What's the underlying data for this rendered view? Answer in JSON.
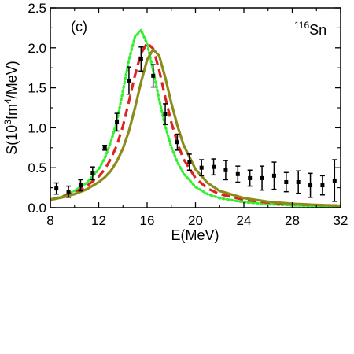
{
  "chart_data": {
    "type": "line",
    "panel_label": "(c)",
    "nucleus": {
      "mass": "116",
      "symbol": "Sn"
    },
    "xlabel": "E(MeV)",
    "ylabel": {
      "base": "S(10",
      "exp1": "3",
      "mid": "fm",
      "exp2": "4",
      "tail": "/MeV)"
    },
    "xlim": [
      8,
      32
    ],
    "ylim": [
      0,
      2.5
    ],
    "x_ticks": [
      8,
      12,
      16,
      20,
      24,
      28,
      32
    ],
    "y_ticks": [
      0.0,
      0.5,
      1.0,
      1.5,
      2.0,
      2.5
    ],
    "x_tick_labels": [
      "8",
      "12",
      "16",
      "20",
      "24",
      "28",
      "32"
    ],
    "y_tick_labels": [
      "0.0",
      "0.5",
      "1.0",
      "1.5",
      "2.0",
      "2.5"
    ],
    "grid": false,
    "series": [
      {
        "style": "dotted",
        "color": "#33ee33",
        "x": [
          8,
          9,
          10,
          11,
          12,
          12.5,
          13,
          13.5,
          14,
          14.5,
          15,
          15.5,
          16,
          16.5,
          17,
          17.5,
          18,
          18.5,
          19,
          20,
          21,
          22,
          24,
          26,
          28,
          30,
          32
        ],
        "y": [
          0.09,
          0.14,
          0.21,
          0.31,
          0.48,
          0.62,
          0.82,
          1.08,
          1.46,
          1.85,
          2.14,
          2.22,
          2.05,
          1.72,
          1.35,
          1.02,
          0.76,
          0.57,
          0.43,
          0.26,
          0.17,
          0.12,
          0.07,
          0.045,
          0.03,
          0.02,
          0.015
        ]
      },
      {
        "style": "dashed",
        "color": "#dd2222",
        "x": [
          8,
          9,
          10,
          11,
          12,
          12.5,
          13,
          13.5,
          14,
          14.5,
          15,
          15.5,
          16,
          16.5,
          17,
          17.5,
          18,
          18.5,
          19,
          20,
          21,
          22,
          24,
          26,
          28,
          30,
          32
        ],
        "y": [
          0.1,
          0.14,
          0.19,
          0.27,
          0.39,
          0.48,
          0.61,
          0.78,
          1.02,
          1.33,
          1.66,
          1.93,
          2.06,
          1.99,
          1.72,
          1.38,
          1.07,
          0.81,
          0.61,
          0.37,
          0.24,
          0.17,
          0.1,
          0.065,
          0.045,
          0.035,
          0.025
        ]
      },
      {
        "style": "solid",
        "color": "#8b8b1a",
        "x": [
          8,
          9,
          10,
          11,
          12,
          12.5,
          13,
          13.5,
          14,
          14.5,
          15,
          15.5,
          16,
          16.5,
          17,
          17.5,
          18,
          18.5,
          19,
          20,
          21,
          22,
          24,
          26,
          28,
          30,
          32
        ],
        "y": [
          0.1,
          0.13,
          0.17,
          0.23,
          0.32,
          0.38,
          0.46,
          0.58,
          0.74,
          0.96,
          1.25,
          1.57,
          1.85,
          1.98,
          1.9,
          1.63,
          1.31,
          1.03,
          0.79,
          0.48,
          0.31,
          0.21,
          0.12,
          0.075,
          0.05,
          0.035,
          0.025
        ]
      },
      {
        "style": "points",
        "color": "#000000",
        "x": [
          8.5,
          9.5,
          10.5,
          11.5,
          12.5,
          13.5,
          14.5,
          15.5,
          16.5,
          17.5,
          18.5,
          19.5,
          20.5,
          21.5,
          22.5,
          23.5,
          24.5,
          25.5,
          26.5,
          27.5,
          28.5,
          29.5,
          30.5,
          31.5
        ],
        "y": [
          0.24,
          0.2,
          0.28,
          0.43,
          0.75,
          1.07,
          1.59,
          1.86,
          1.65,
          1.17,
          0.82,
          0.57,
          0.5,
          0.51,
          0.47,
          0.42,
          0.37,
          0.37,
          0.4,
          0.32,
          0.32,
          0.28,
          0.28,
          0.34
        ],
        "err": [
          0.07,
          0.07,
          0.07,
          0.08,
          0.03,
          0.11,
          0.17,
          0.15,
          0.14,
          0.13,
          0.1,
          0.1,
          0.1,
          0.1,
          0.12,
          0.1,
          0.1,
          0.15,
          0.17,
          0.12,
          0.14,
          0.15,
          0.12,
          0.26
        ]
      }
    ]
  }
}
